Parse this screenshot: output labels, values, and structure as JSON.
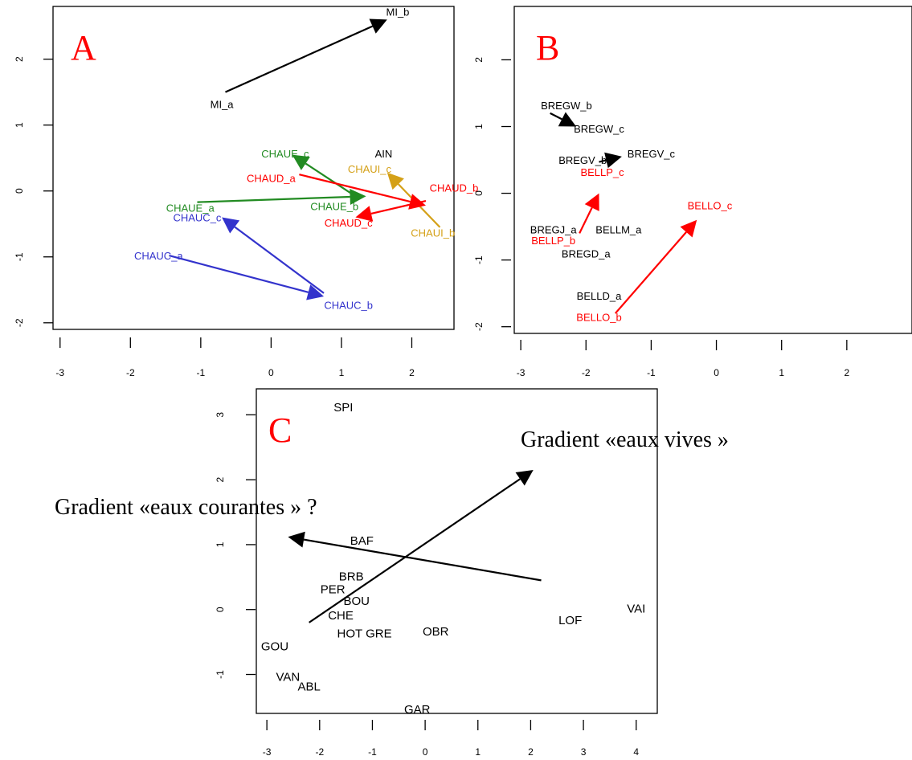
{
  "chart_data": [
    {
      "type": "scatter",
      "panel_letter": "A",
      "xlim": [
        -3.1,
        2.6
      ],
      "ylim": [
        -2.1,
        2.8
      ],
      "xticks": [
        -3,
        -2,
        -1,
        0,
        1,
        2
      ],
      "yticks": [
        -2,
        -1,
        0,
        1,
        2
      ],
      "points": [
        {
          "label": "MI_a",
          "x": -0.7,
          "y": 1.3,
          "color": "#000000"
        },
        {
          "label": "MI_b",
          "x": 1.8,
          "y": 2.7,
          "color": "#000000"
        },
        {
          "label": "AIN",
          "x": 1.6,
          "y": 0.55,
          "color": "#000000"
        },
        {
          "label": "CHAUE_c",
          "x": 0.2,
          "y": 0.55,
          "color": "#228b22"
        },
        {
          "label": "CHAUI_c",
          "x": 1.4,
          "y": 0.32,
          "color": "#d4a017"
        },
        {
          "label": "CHAUD_a",
          "x": 0.0,
          "y": 0.18,
          "color": "#ff0000"
        },
        {
          "label": "CHAUD_b",
          "x": 2.6,
          "y": 0.03,
          "color": "#ff0000"
        },
        {
          "label": "CHAUE_a",
          "x": -1.15,
          "y": -0.27,
          "color": "#228b22"
        },
        {
          "label": "CHAUE_b",
          "x": 0.9,
          "y": -0.25,
          "color": "#228b22"
        },
        {
          "label": "CHAUC_c",
          "x": -1.05,
          "y": -0.42,
          "color": "#3333cc"
        },
        {
          "label": "CHAUD_c",
          "x": 1.1,
          "y": -0.5,
          "color": "#ff0000"
        },
        {
          "label": "CHAUI_b",
          "x": 2.3,
          "y": -0.65,
          "color": "#d4a017"
        },
        {
          "label": "CHAUC_a",
          "x": -1.6,
          "y": -1.0,
          "color": "#3333cc"
        },
        {
          "label": "CHAUC_b",
          "x": 1.1,
          "y": -1.75,
          "color": "#3333cc"
        }
      ],
      "arrows": [
        {
          "from": [
            -0.65,
            1.5
          ],
          "to": [
            1.65,
            2.6
          ],
          "color": "#000000"
        },
        {
          "from": [
            -1.05,
            -0.17
          ],
          "to": [
            1.35,
            -0.08
          ],
          "color": "#228b22"
        },
        {
          "from": [
            1.2,
            -0.08
          ],
          "to": [
            0.3,
            0.55
          ],
          "color": "#228b22"
        },
        {
          "from": [
            2.4,
            -0.55
          ],
          "to": [
            1.65,
            0.28
          ],
          "color": "#d4a017"
        },
        {
          "from": [
            0.4,
            0.25
          ],
          "to": [
            2.2,
            -0.22
          ],
          "color": "#ff0000"
        },
        {
          "from": [
            2.2,
            -0.15
          ],
          "to": [
            1.2,
            -0.4
          ],
          "color": "#ff0000"
        },
        {
          "from": [
            -1.45,
            -0.98
          ],
          "to": [
            0.75,
            -1.6
          ],
          "color": "#3333cc"
        },
        {
          "from": [
            0.75,
            -1.55
          ],
          "to": [
            -0.7,
            -0.4
          ],
          "color": "#3333cc"
        }
      ]
    },
    {
      "type": "scatter",
      "panel_letter": "B",
      "xlim": [
        -3.1,
        3.0
      ],
      "ylim": [
        -2.1,
        2.8
      ],
      "xticks": [
        -3,
        -2,
        -1,
        0,
        1,
        2
      ],
      "yticks": [
        -2,
        -1,
        0,
        1,
        2
      ],
      "points": [
        {
          "label": "BREGW_b",
          "x": -2.3,
          "y": 1.3,
          "color": "#000000"
        },
        {
          "label": "BREGW_c",
          "x": -1.8,
          "y": 0.95,
          "color": "#000000"
        },
        {
          "label": "BREGV_c",
          "x": -1.0,
          "y": 0.58,
          "color": "#000000"
        },
        {
          "label": "BREGV_b",
          "x": -2.05,
          "y": 0.48,
          "color": "#000000"
        },
        {
          "label": "BELLP_c",
          "x": -1.75,
          "y": 0.3,
          "color": "#ff0000"
        },
        {
          "label": "BELLO_c",
          "x": -0.1,
          "y": -0.2,
          "color": "#ff0000"
        },
        {
          "label": "BREGJ_a",
          "x": -2.5,
          "y": -0.56,
          "color": "#000000"
        },
        {
          "label": "BELLM_a",
          "x": -1.5,
          "y": -0.56,
          "color": "#000000"
        },
        {
          "label": "BELLP_b",
          "x": -2.5,
          "y": -0.72,
          "color": "#ff0000"
        },
        {
          "label": "BREGD_a",
          "x": -2.0,
          "y": -0.92,
          "color": "#000000"
        },
        {
          "label": "BELLD_a",
          "x": -1.8,
          "y": -1.55,
          "color": "#000000"
        },
        {
          "label": "BELLO_b",
          "x": -1.8,
          "y": -1.87,
          "color": "#ff0000"
        }
      ],
      "arrows": [
        {
          "from": [
            -2.55,
            1.2
          ],
          "to": [
            -2.15,
            1.0
          ],
          "color": "#000000"
        },
        {
          "from": [
            -1.8,
            0.47
          ],
          "to": [
            -1.45,
            0.55
          ],
          "color": "#000000"
        },
        {
          "from": [
            -2.1,
            -0.6
          ],
          "to": [
            -1.8,
            0.0
          ],
          "color": "#ff0000"
        },
        {
          "from": [
            -1.55,
            -1.8
          ],
          "to": [
            -0.3,
            -0.4
          ],
          "color": "#ff0000"
        }
      ]
    },
    {
      "type": "scatter",
      "panel_letter": "C",
      "xlim": [
        -3.2,
        4.4
      ],
      "ylim": [
        -1.6,
        3.4
      ],
      "xticks": [
        -3,
        -2,
        -1,
        0,
        1,
        2,
        3,
        4
      ],
      "yticks": [
        -1,
        0,
        1,
        2,
        3
      ],
      "points": [
        {
          "label": "SPI",
          "x": -1.55,
          "y": 3.1,
          "color": "#000000"
        },
        {
          "label": "BAF",
          "x": -1.2,
          "y": 1.05,
          "color": "#000000"
        },
        {
          "label": "BRB",
          "x": -1.4,
          "y": 0.5,
          "color": "#000000"
        },
        {
          "label": "PER",
          "x": -1.75,
          "y": 0.3,
          "color": "#000000"
        },
        {
          "label": "BOU",
          "x": -1.3,
          "y": 0.12,
          "color": "#000000"
        },
        {
          "label": "CHE",
          "x": -1.6,
          "y": -0.1,
          "color": "#000000"
        },
        {
          "label": "HOT GRE",
          "x": -1.15,
          "y": -0.38,
          "color": "#000000"
        },
        {
          "label": "OBR",
          "x": 0.2,
          "y": -0.35,
          "color": "#000000"
        },
        {
          "label": "LOF",
          "x": 2.75,
          "y": -0.18,
          "color": "#000000"
        },
        {
          "label": "VAI",
          "x": 4.0,
          "y": 0.0,
          "color": "#000000"
        },
        {
          "label": "GOU",
          "x": -2.85,
          "y": -0.58,
          "color": "#000000"
        },
        {
          "label": "VAN",
          "x": -2.6,
          "y": -1.05,
          "color": "#000000"
        },
        {
          "label": "ABL",
          "x": -2.2,
          "y": -1.2,
          "color": "#000000"
        },
        {
          "label": "GAR",
          "x": -0.15,
          "y": -1.55,
          "color": "#000000"
        }
      ],
      "arrows": [
        {
          "from": [
            -2.2,
            -0.2
          ],
          "to": [
            2.05,
            2.15
          ],
          "color": "#000000"
        },
        {
          "from": [
            2.2,
            0.45
          ],
          "to": [
            -2.6,
            1.12
          ],
          "color": "#000000"
        }
      ],
      "annotations": [
        "Gradient «eaux vives »",
        "Gradient «eaux courantes » ?"
      ]
    }
  ]
}
